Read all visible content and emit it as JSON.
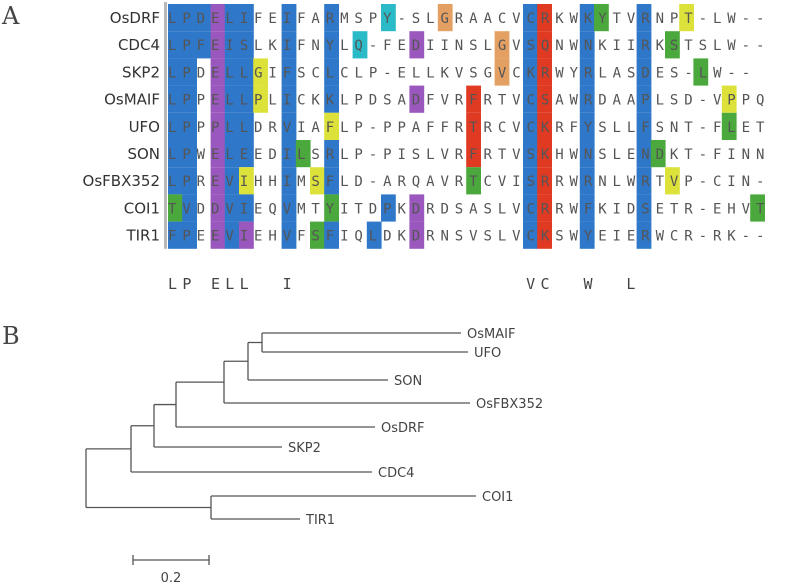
{
  "panels": {
    "a": "A",
    "b": "B"
  },
  "alignment": {
    "sequences": [
      {
        "name": "OsDRF",
        "seq": "LPDELIFEIFARMSPY-SLGRAACVCRKWKYTVRNPT-LW--"
      },
      {
        "name": "CDC4",
        "seq": "LPFEISLKIFNYLQ-FEDIINSLGVSQNWNKIIRKSTSLW--"
      },
      {
        "name": "SKP2",
        "seq": "LPDELLGIFSCLCLP-ELLKVSGVCKRWYRLASDES-LW--"
      },
      {
        "name": "OsMAIF",
        "seq": "LPPELLPLICKKLPDSADFVRFRTVCSAWRDAAPLSD-VPPQ"
      },
      {
        "name": "UFO",
        "seq": "LPPPLLDRVIAFLP-PPAFFRTRCVCKRFYSLLFSNT-FLET"
      },
      {
        "name": "SON",
        "seq": "LPWELEEDILSRLP-PISLVRFRTVSKHWNSLENDKT-FINN"
      },
      {
        "name": "OsFBX352",
        "seq": "LPREVIHHIMSFLD-ARQAVRTCVISRRWRNLWRTVP-CIN-"
      },
      {
        "name": "COI1",
        "seq": "TVDDVIEQVMTYITDPKDRDSASLVCRRWFKIDSETR-EHVT"
      },
      {
        "name": "TIR1",
        "seq": "FPEEVIEHVFSFIQLDKDRNSVSLVCKSWYEIERWCR-RK--"
      }
    ],
    "consensus": "LP ELL  I                VC  W  L         ",
    "colors": {
      "blue": "#2f77c8",
      "yellow": "#dde23a",
      "purple": "#9a58be",
      "cyan": "#2bbbc8",
      "green": "#4aa83c",
      "red": "#e03a22",
      "orange": "#e4a062",
      "pink": "#d8a0b4"
    }
  },
  "tree": {
    "leaves": [
      "OsMAIF",
      "UFO",
      "SON",
      "OsFBX352",
      "OsDRF",
      "SKP2",
      "CDC4",
      "COI1",
      "TIR1"
    ],
    "scale_label": "0.2"
  }
}
